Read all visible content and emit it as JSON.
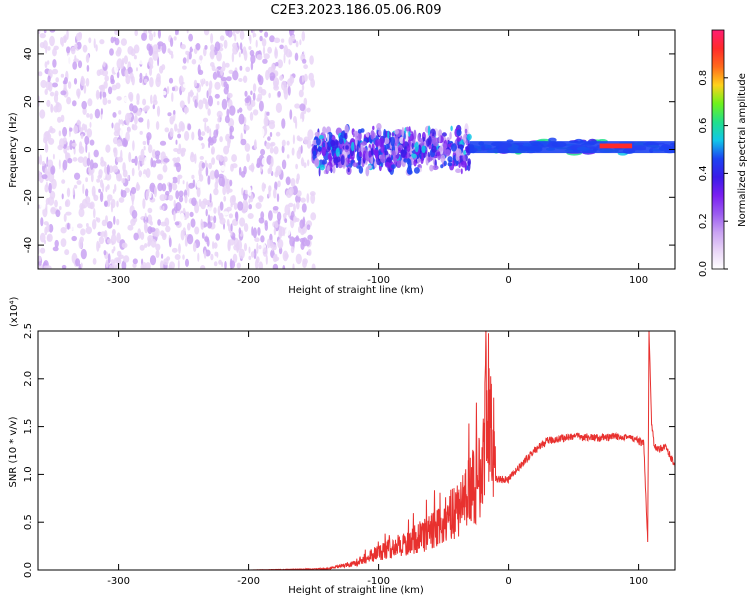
{
  "title": "C2E3.2023.186.05.06.R09",
  "colors": {
    "snr_line": "#e8312f",
    "colorbar": [
      "#ffffff",
      "#e9d5f7",
      "#c9a2f2",
      "#9b5cf0",
      "#7a1ff0",
      "#3a1ce8",
      "#1c43f2",
      "#11c7e8",
      "#22e08a",
      "#6ef21c",
      "#ffd21c",
      "#ff6a1c",
      "#ff2a2a",
      "#ff1d73"
    ]
  },
  "chart_data": [
    {
      "type": "heatmap",
      "xlabel": "Height of straight line (km)",
      "ylabel": "Frequency (Hz)",
      "xlim": [
        -362,
        128
      ],
      "ylim": [
        -50,
        50
      ],
      "xticks": [
        -300,
        -200,
        -100,
        0,
        100
      ],
      "xtick_labels": [
        "-300",
        "-200",
        "-100",
        "0",
        "100"
      ],
      "yticks": [
        -40,
        -20,
        0,
        20,
        40
      ],
      "ytick_labels": [
        "-40",
        "-20",
        "0",
        "20",
        "40"
      ],
      "colorbar": {
        "label": "Normalized spectral amplitude",
        "range": [
          0,
          1
        ],
        "ticks": [
          0.0,
          0.2,
          0.4,
          0.6,
          0.8
        ],
        "tick_labels": [
          "0.0",
          "0.2",
          "0.4",
          "0.6",
          "0.8"
        ]
      },
      "regions": [
        {
          "x_range": [
            -362,
            -150
          ],
          "freq_range": [
            -50,
            50
          ],
          "amplitude": 0.1
        },
        {
          "x_range": [
            -150,
            -30
          ],
          "freq_range": [
            -10,
            10
          ],
          "amplitude": 0.35
        },
        {
          "x_range": [
            -30,
            128
          ],
          "freq_range": [
            -2,
            4
          ],
          "amplitude": 0.5
        }
      ]
    },
    {
      "type": "line",
      "xlabel": "Height of straight line (km)",
      "ylabel": "SNR (10 * v/v)",
      "y_multiplier": "(x10⁴)",
      "xlim": [
        -362,
        128
      ],
      "ylim": [
        0,
        2.5
      ],
      "xticks": [
        -300,
        -200,
        -100,
        0,
        100
      ],
      "xtick_labels": [
        "-300",
        "-200",
        "-100",
        "0",
        "100"
      ],
      "yticks": [
        0.0,
        0.5,
        1.0,
        1.5,
        2.0,
        2.5
      ],
      "ytick_labels": [
        "0.0",
        "0.5",
        "1.0",
        "1.5",
        "2.0",
        "2.5"
      ],
      "series": [
        {
          "x": [
            -362,
            -300,
            -200,
            -140,
            -120,
            -100,
            -80,
            -60,
            -45,
            -30,
            -20,
            -17,
            -10,
            0,
            10,
            20,
            30,
            50,
            70,
            90,
            100,
            104,
            107,
            108,
            110,
            112,
            115,
            120,
            128
          ],
          "y": [
            0.0,
            0.0,
            0.0,
            0.01,
            0.05,
            0.15,
            0.22,
            0.32,
            0.45,
            0.65,
            0.8,
            1.6,
            0.95,
            0.95,
            1.1,
            1.25,
            1.35,
            1.4,
            1.38,
            1.4,
            1.35,
            1.32,
            0.3,
            2.5,
            1.55,
            1.3,
            1.25,
            1.3,
            1.1
          ]
        }
      ]
    }
  ]
}
